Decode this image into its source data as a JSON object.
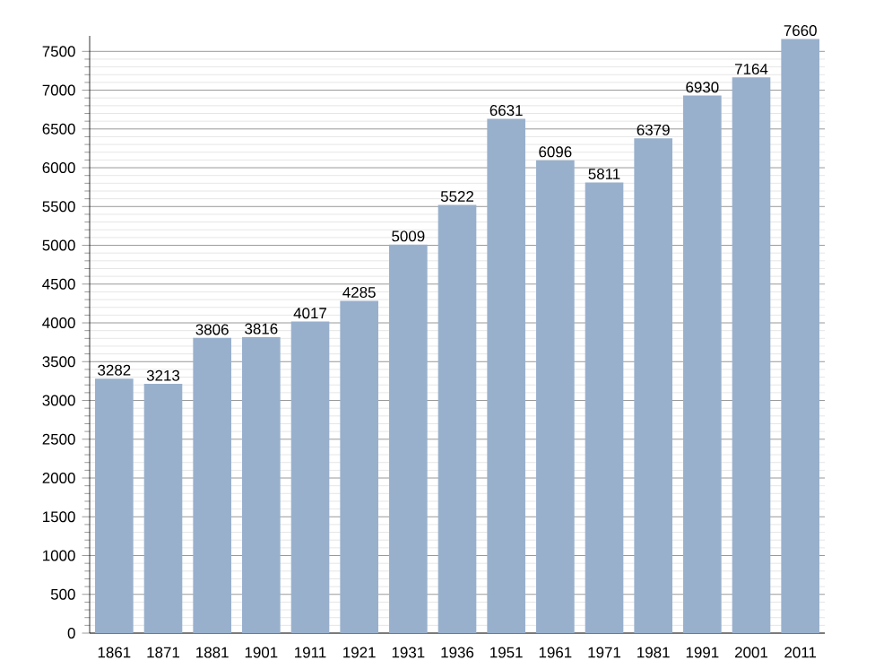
{
  "chart_data": {
    "type": "bar",
    "categories": [
      "1861",
      "1871",
      "1881",
      "1901",
      "1911",
      "1921",
      "1931",
      "1936",
      "1951",
      "1961",
      "1971",
      "1981",
      "1991",
      "2001",
      "2011"
    ],
    "values": [
      3282,
      3213,
      3806,
      3816,
      4017,
      4285,
      5009,
      5522,
      6631,
      6096,
      5811,
      6379,
      6930,
      7164,
      7660
    ],
    "color": "#98b0cc",
    "ylim": [
      0,
      7700
    ],
    "yticks": [
      0,
      500,
      1000,
      1500,
      2000,
      2500,
      3000,
      3500,
      4000,
      4500,
      5000,
      5500,
      6000,
      6500,
      7000,
      7500
    ],
    "grid": "y",
    "data_labels": true
  }
}
